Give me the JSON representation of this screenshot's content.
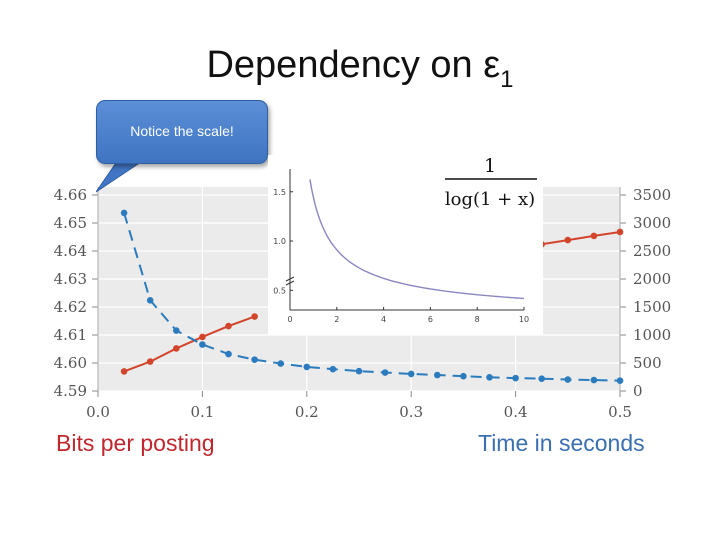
{
  "title": {
    "text": "Dependency on ε",
    "subscript": "1"
  },
  "callout": {
    "text": "Notice the scale!"
  },
  "footer": {
    "left_label": "Bits per posting",
    "right_label": "Time in seconds"
  },
  "colors": {
    "bits_series": "#d2452b",
    "time_series": "#2b7bbf",
    "left_label": "#c0272d",
    "right_label": "#3a6fb0",
    "plot_bg": "#ebebeb",
    "callout": "#4a80cc"
  },
  "chart_data": [
    {
      "type": "line",
      "xlim": [
        0.0,
        0.5
      ],
      "x_ticks": [
        0.0,
        0.1,
        0.2,
        0.3,
        0.4,
        0.5
      ],
      "x_tick_labels": [
        "0.0",
        "0.1",
        "0.2",
        "0.3",
        "0.4",
        "0.5"
      ],
      "y_left": {
        "lim": [
          4.59,
          4.66
        ],
        "ticks": [
          4.59,
          4.6,
          4.61,
          4.62,
          4.63,
          4.64,
          4.65,
          4.66
        ],
        "tick_labels": [
          "4.59",
          "4.60",
          "4.61",
          "4.62",
          "4.63",
          "4.64",
          "4.65",
          "4.66"
        ]
      },
      "y_right": {
        "lim": [
          0,
          3500
        ],
        "ticks": [
          0,
          500,
          1000,
          1500,
          2000,
          2500,
          3000,
          3500
        ],
        "tick_labels": [
          "0",
          "500",
          "1000",
          "1500",
          "2000",
          "2500",
          "3000",
          "3500"
        ]
      },
      "grid": true,
      "series": [
        {
          "axis": "left",
          "style": "solid",
          "x": [
            0.025,
            0.05,
            0.075,
            0.1,
            0.125,
            0.15,
            0.425,
            0.45,
            0.475,
            0.5
          ],
          "values": [
            4.597,
            4.6005,
            4.6052,
            4.6093,
            4.6132,
            4.6166,
            4.6424,
            4.6439,
            4.6454,
            4.6468
          ]
        },
        {
          "axis": "right",
          "style": "dashed",
          "x": [
            0.025,
            0.05,
            0.075,
            0.1,
            0.125,
            0.15,
            0.175,
            0.2,
            0.225,
            0.25,
            0.275,
            0.3,
            0.325,
            0.35,
            0.375,
            0.4,
            0.425,
            0.45,
            0.475,
            0.5
          ],
          "values": [
            3180,
            1620,
            1080,
            830,
            660,
            560,
            490,
            430,
            390,
            355,
            330,
            305,
            285,
            265,
            245,
            230,
            220,
            205,
            195,
            185
          ]
        }
      ]
    },
    {
      "type": "line",
      "title": "1 / log(1 + x)",
      "title_numerator": "1",
      "title_denominator": "log(1 + x)",
      "xlim": [
        0,
        10
      ],
      "x_ticks": [
        0,
        2,
        4,
        6,
        8,
        10
      ],
      "x_tick_labels": [
        "0",
        "2",
        "4",
        "6",
        "8",
        "10"
      ],
      "ylim": [
        0.3,
        1.65
      ],
      "y_ticks": [
        0.5,
        1.0,
        1.5
      ],
      "y_tick_labels": [
        "0.5",
        "1.0",
        "1.5"
      ],
      "series_color": "#8a86c2",
      "x_range": [
        0.85,
        10
      ]
    }
  ]
}
